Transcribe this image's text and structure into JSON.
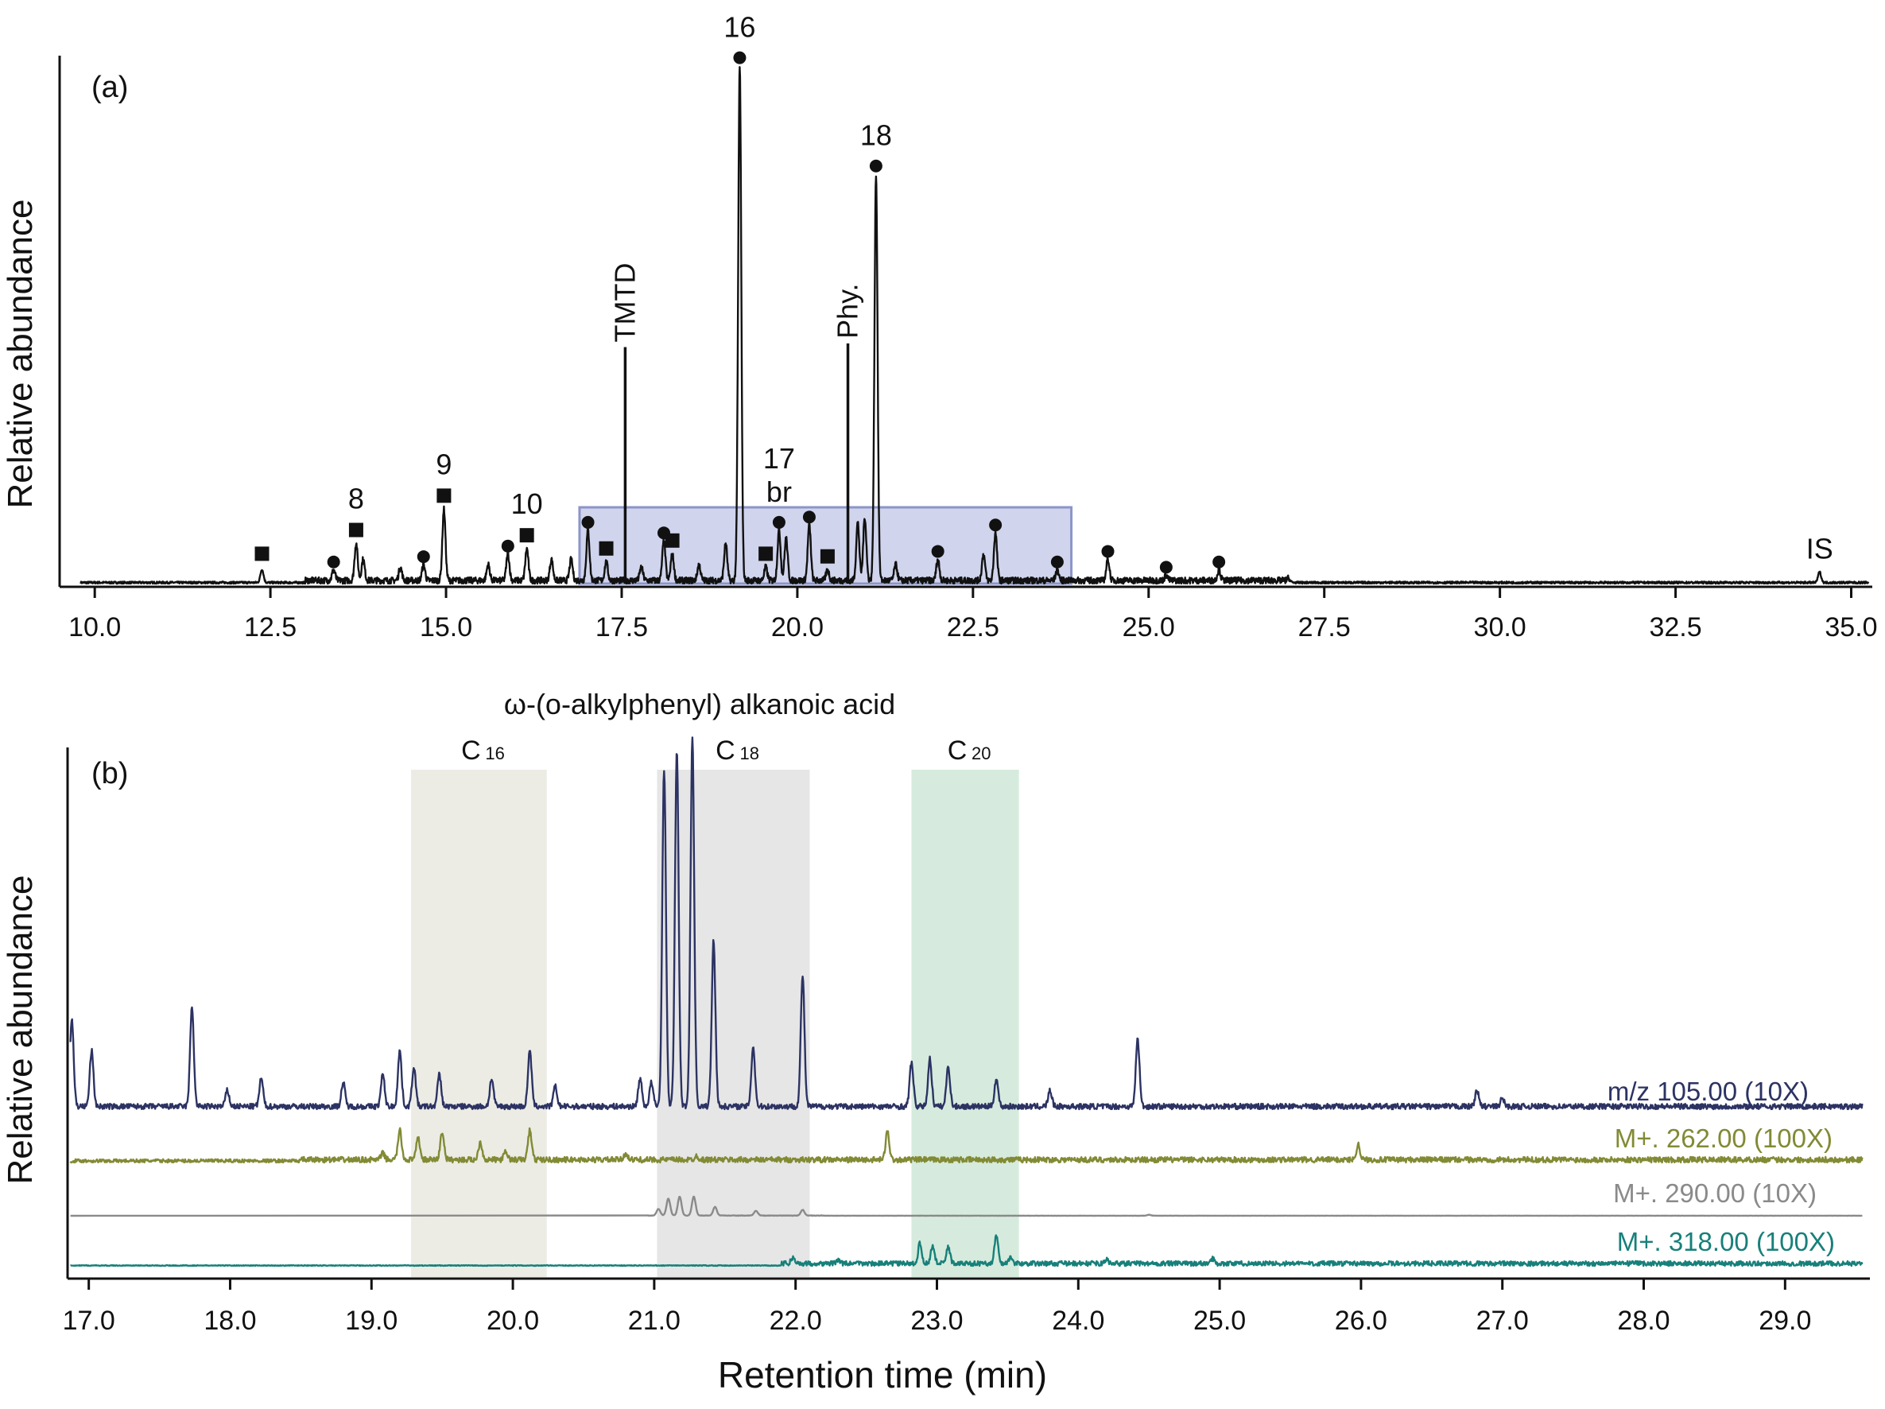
{
  "chart_data": [
    {
      "type": "line",
      "panel_label": "(a)",
      "ylabel": "Relative abundance",
      "xlim": [
        9.5,
        35.3
      ],
      "x_ticks": [
        "10.0",
        "12.5",
        "15.0",
        "17.5",
        "20.0",
        "22.5",
        "25.0",
        "27.5",
        "30.0",
        "32.5",
        "35.0"
      ],
      "highlight_region": {
        "x": [
          16.9,
          23.9
        ],
        "color": "#a9b1dc"
      },
      "peaks": [
        {
          "x": 12.38,
          "y": 0.025,
          "marker": "square"
        },
        {
          "x": 13.4,
          "y": 0.02,
          "marker": "circle"
        },
        {
          "x": 13.72,
          "y": 0.07,
          "marker": "square",
          "label": "8"
        },
        {
          "x": 13.82,
          "y": 0.04
        },
        {
          "x": 14.35,
          "y": 0.025
        },
        {
          "x": 14.68,
          "y": 0.03,
          "marker": "circle"
        },
        {
          "x": 14.97,
          "y": 0.135,
          "marker": "square",
          "label": "9"
        },
        {
          "x": 15.6,
          "y": 0.03
        },
        {
          "x": 15.88,
          "y": 0.05,
          "marker": "circle"
        },
        {
          "x": 16.15,
          "y": 0.06,
          "marker": "square",
          "label": "10"
        },
        {
          "x": 16.5,
          "y": 0.04
        },
        {
          "x": 16.78,
          "y": 0.04
        },
        {
          "x": 17.02,
          "y": 0.095,
          "marker": "circle"
        },
        {
          "x": 17.28,
          "y": 0.035,
          "marker": "square"
        },
        {
          "x": 17.55,
          "y": 0.448,
          "line_label": "TMTD"
        },
        {
          "x": 17.78,
          "y": 0.025
        },
        {
          "x": 18.1,
          "y": 0.075,
          "marker": "circle"
        },
        {
          "x": 18.22,
          "y": 0.05,
          "marker": "square"
        },
        {
          "x": 18.6,
          "y": 0.03
        },
        {
          "x": 18.98,
          "y": 0.07
        },
        {
          "x": 19.18,
          "y": 0.975,
          "marker": "circle",
          "label": "16"
        },
        {
          "x": 19.55,
          "y": 0.025,
          "marker": "square"
        },
        {
          "x": 19.74,
          "y": 0.095,
          "marker": "circle",
          "label": "17\nbr"
        },
        {
          "x": 19.84,
          "y": 0.08
        },
        {
          "x": 20.17,
          "y": 0.105,
          "marker": "circle"
        },
        {
          "x": 20.43,
          "y": 0.02,
          "marker": "square"
        },
        {
          "x": 20.72,
          "y": 0.455,
          "line_label": "Phy."
        },
        {
          "x": 20.86,
          "y": 0.11
        },
        {
          "x": 20.96,
          "y": 0.12
        },
        {
          "x": 21.12,
          "y": 0.77,
          "marker": "circle",
          "label": "18"
        },
        {
          "x": 21.4,
          "y": 0.03
        },
        {
          "x": 22.0,
          "y": 0.04,
          "marker": "circle"
        },
        {
          "x": 22.65,
          "y": 0.05
        },
        {
          "x": 22.82,
          "y": 0.09,
          "marker": "circle"
        },
        {
          "x": 23.7,
          "y": 0.02,
          "marker": "circle"
        },
        {
          "x": 24.42,
          "y": 0.04,
          "marker": "circle"
        },
        {
          "x": 25.25,
          "y": 0.01,
          "marker": "circle"
        },
        {
          "x": 26.0,
          "y": 0.02,
          "marker": "circle"
        },
        {
          "x": 27.0,
          "y": 0.005
        },
        {
          "x": 34.55,
          "y": 0.02,
          "label": "IS"
        }
      ]
    },
    {
      "type": "line",
      "panel_label": "(b)",
      "title": "ω-(o-alkylphenyl) alkanoic acid",
      "ylabel": "Relative abundance",
      "xlabel": "Retention time (min)",
      "xlim": [
        16.85,
        29.6
      ],
      "x_ticks": [
        "17.0",
        "18.0",
        "19.0",
        "20.0",
        "21.0",
        "22.0",
        "23.0",
        "24.0",
        "25.0",
        "26.0",
        "27.0",
        "28.0",
        "29.0"
      ],
      "bands": [
        {
          "label": "C",
          "sub": "16",
          "x": [
            19.28,
            20.24
          ],
          "color": "#e9e9e1"
        },
        {
          "label": "C",
          "sub": "18",
          "x": [
            21.02,
            22.1
          ],
          "color": "#e2e2e2"
        },
        {
          "label": "C",
          "sub": "20",
          "x": [
            22.82,
            23.58
          ],
          "color": "#cfe8d7"
        }
      ],
      "series": [
        {
          "name": "m/z 105.00 (10X)",
          "color": "#2c3363",
          "peaks": [
            [
              16.88,
              0.22
            ],
            [
              17.02,
              0.14
            ],
            [
              17.73,
              0.25
            ],
            [
              17.98,
              0.04
            ],
            [
              18.22,
              0.07
            ],
            [
              18.8,
              0.06
            ],
            [
              19.08,
              0.08
            ],
            [
              19.2,
              0.14
            ],
            [
              19.3,
              0.1
            ],
            [
              19.48,
              0.08
            ],
            [
              19.85,
              0.07
            ],
            [
              20.12,
              0.14
            ],
            [
              20.3,
              0.05
            ],
            [
              20.9,
              0.07
            ],
            [
              20.98,
              0.06
            ],
            [
              21.07,
              0.85
            ],
            [
              21.16,
              0.9
            ],
            [
              21.27,
              0.93
            ],
            [
              21.42,
              0.42
            ],
            [
              21.7,
              0.15
            ],
            [
              22.05,
              0.33
            ],
            [
              22.82,
              0.11
            ],
            [
              22.95,
              0.12
            ],
            [
              23.08,
              0.1
            ],
            [
              23.42,
              0.07
            ],
            [
              23.8,
              0.04
            ],
            [
              24.42,
              0.17
            ],
            [
              26.82,
              0.04
            ],
            [
              27.0,
              0.02
            ]
          ]
        },
        {
          "name": "M+. 262.00 (100X)",
          "color": "#828a34",
          "peaks": [
            [
              19.08,
              0.05
            ],
            [
              19.2,
              0.23
            ],
            [
              19.33,
              0.17
            ],
            [
              19.5,
              0.22
            ],
            [
              19.77,
              0.14
            ],
            [
              19.95,
              0.06
            ],
            [
              20.12,
              0.23
            ],
            [
              20.8,
              0.05
            ],
            [
              21.3,
              0.03
            ],
            [
              22.65,
              0.22
            ],
            [
              25.98,
              0.12
            ]
          ]
        },
        {
          "name": "M+. 290.00 (10X)",
          "color": "#8a8a8a",
          "peaks": [
            [
              21.03,
              0.07
            ],
            [
              21.1,
              0.18
            ],
            [
              21.18,
              0.2
            ],
            [
              21.28,
              0.2
            ],
            [
              21.43,
              0.09
            ],
            [
              21.72,
              0.05
            ],
            [
              22.05,
              0.06
            ],
            [
              24.5,
              0.01
            ]
          ]
        },
        {
          "name": "M+. 318.00 (100X)",
          "color": "#17807a",
          "peaks": [
            [
              21.98,
              0.05
            ],
            [
              22.3,
              0.03
            ],
            [
              22.88,
              0.17
            ],
            [
              22.97,
              0.15
            ],
            [
              23.08,
              0.14
            ],
            [
              23.42,
              0.23
            ],
            [
              23.52,
              0.05
            ],
            [
              24.2,
              0.03
            ],
            [
              24.95,
              0.04
            ]
          ]
        }
      ]
    }
  ]
}
